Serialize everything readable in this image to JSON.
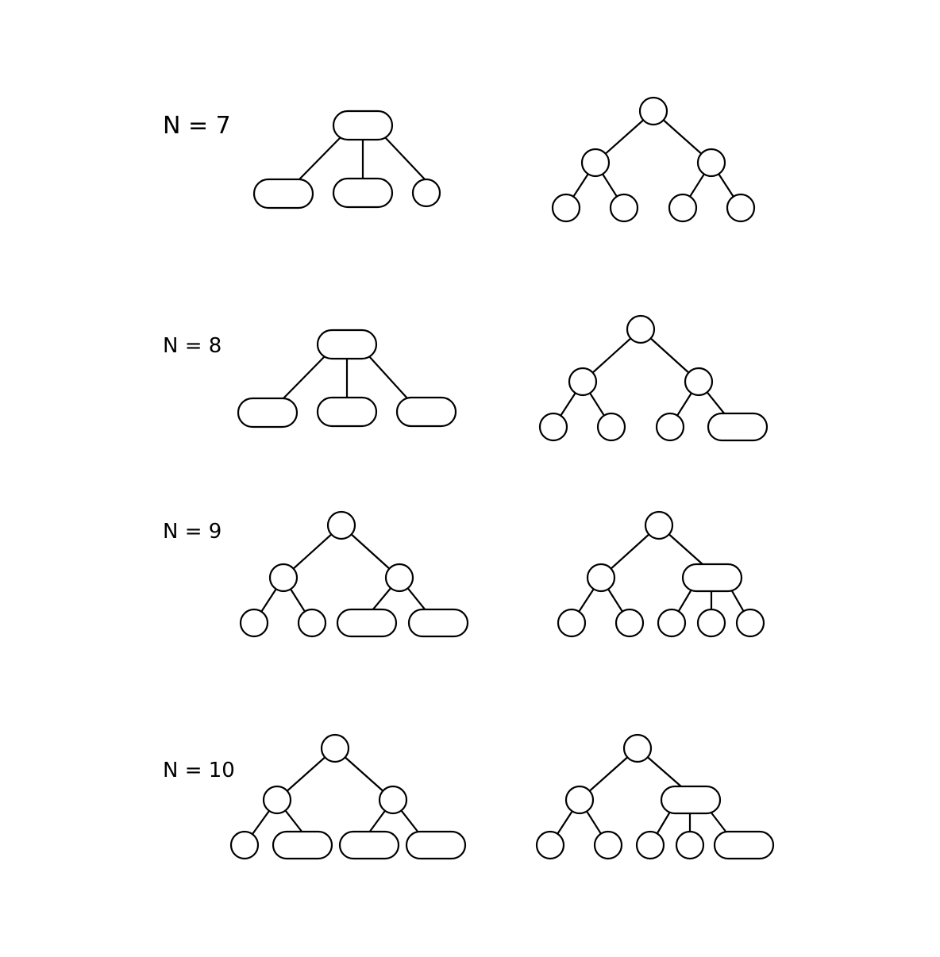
{
  "diagram": {
    "rows": [
      {
        "label": "N = 7"
      },
      {
        "label": "N = 8"
      },
      {
        "label": "N = 9"
      },
      {
        "label": "N = 10"
      }
    ]
  }
}
